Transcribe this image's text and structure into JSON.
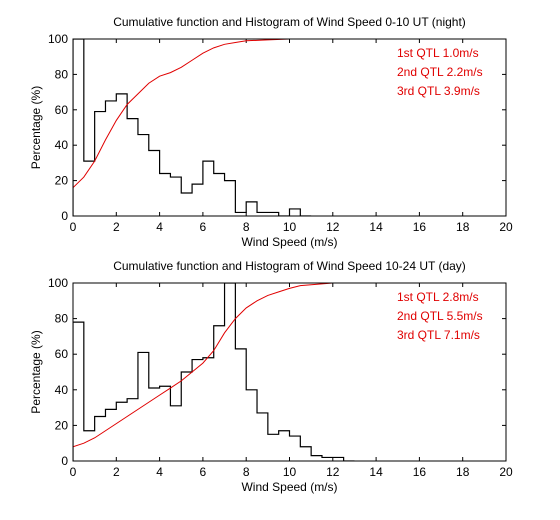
{
  "chart_data": [
    {
      "type": "line",
      "title": "Cumulative function and Histogram of Wind Speed 0-10 UT (night)",
      "xlabel": "Wind Speed (m/s)",
      "ylabel": "Percentage (%)",
      "xlim": [
        0,
        20
      ],
      "ylim": [
        0,
        100
      ],
      "x_ticks": [
        "0",
        "2",
        "4",
        "6",
        "8",
        "10",
        "12",
        "14",
        "16",
        "18",
        "20"
      ],
      "y_ticks": [
        "0",
        "20",
        "40",
        "60",
        "80",
        "100"
      ],
      "grid": false,
      "annotations": [
        "1st QTL 1.0m/s",
        "2nd QTL 2.2m/s",
        "3rd QTL 3.9m/s"
      ],
      "annotation_color": "#e00000",
      "series": [
        {
          "kind": "histogram-step",
          "color": "#000000",
          "bin_width": 0.5,
          "bin_starts": [
            0.0,
            0.5,
            1.0,
            1.5,
            2.0,
            2.5,
            3.0,
            3.5,
            4.0,
            4.5,
            5.0,
            5.5,
            6.0,
            6.5,
            7.0,
            7.5,
            8.0,
            8.5,
            9.0,
            9.5,
            10.0,
            10.5
          ],
          "values": [
            100,
            31,
            59,
            65,
            69,
            55,
            46,
            37,
            24,
            22,
            13,
            18,
            31,
            24,
            20,
            2,
            8,
            2,
            2,
            0,
            4,
            0
          ]
        },
        {
          "kind": "cumulative",
          "color": "#e00000",
          "x": [
            0,
            0.5,
            1.0,
            1.5,
            2.0,
            2.5,
            3.0,
            3.5,
            4.0,
            4.5,
            5.0,
            5.5,
            6.0,
            6.5,
            7.0,
            7.5,
            8.0,
            9.0,
            10.0,
            11.0,
            20.0
          ],
          "y": [
            16,
            22,
            31,
            43,
            54,
            63,
            69,
            75,
            79,
            81,
            84,
            88,
            92,
            95,
            97,
            98,
            99,
            99.5,
            100,
            100,
            100
          ]
        }
      ]
    },
    {
      "type": "line",
      "title": "Cumulative function and Histogram of Wind Speed 10-24 UT (day)",
      "xlabel": "Wind Speed (m/s)",
      "ylabel": "Percentage (%)",
      "xlim": [
        0,
        20
      ],
      "ylim": [
        0,
        100
      ],
      "x_ticks": [
        "0",
        "2",
        "4",
        "6",
        "8",
        "10",
        "12",
        "14",
        "16",
        "18",
        "20"
      ],
      "y_ticks": [
        "0",
        "20",
        "40",
        "60",
        "80",
        "100"
      ],
      "grid": false,
      "annotations": [
        "1st QTL 2.8m/s",
        "2nd QTL 5.5m/s",
        "3rd QTL 7.1m/s"
      ],
      "annotation_color": "#e00000",
      "series": [
        {
          "kind": "histogram-step",
          "color": "#000000",
          "bin_width": 0.5,
          "bin_starts": [
            0.0,
            0.5,
            1.0,
            1.5,
            2.0,
            2.5,
            3.0,
            3.5,
            4.0,
            4.5,
            5.0,
            5.5,
            6.0,
            6.5,
            7.0,
            7.5,
            8.0,
            8.5,
            9.0,
            9.5,
            10.0,
            10.5,
            11.0,
            11.5,
            12.0,
            12.5
          ],
          "values": [
            78,
            17,
            25,
            29,
            33,
            35,
            61,
            41,
            42,
            31,
            50,
            57,
            58,
            76,
            100,
            63,
            40,
            27,
            15,
            17,
            14,
            8,
            3,
            2,
            2,
            0
          ]
        },
        {
          "kind": "cumulative",
          "color": "#e00000",
          "x": [
            0,
            0.5,
            1.0,
            1.5,
            2.0,
            2.5,
            3.0,
            3.5,
            4.0,
            4.5,
            5.0,
            5.5,
            6.0,
            6.5,
            7.0,
            7.5,
            8.0,
            8.5,
            9.0,
            9.5,
            10.0,
            10.5,
            11.0,
            11.5,
            12.0,
            20.0
          ],
          "y": [
            8,
            10,
            13,
            17,
            21,
            25,
            29,
            33,
            37,
            41,
            45,
            50,
            55,
            62,
            72,
            80,
            86,
            90,
            93,
            95,
            97,
            98.5,
            99,
            99.5,
            100,
            100
          ]
        }
      ]
    }
  ]
}
